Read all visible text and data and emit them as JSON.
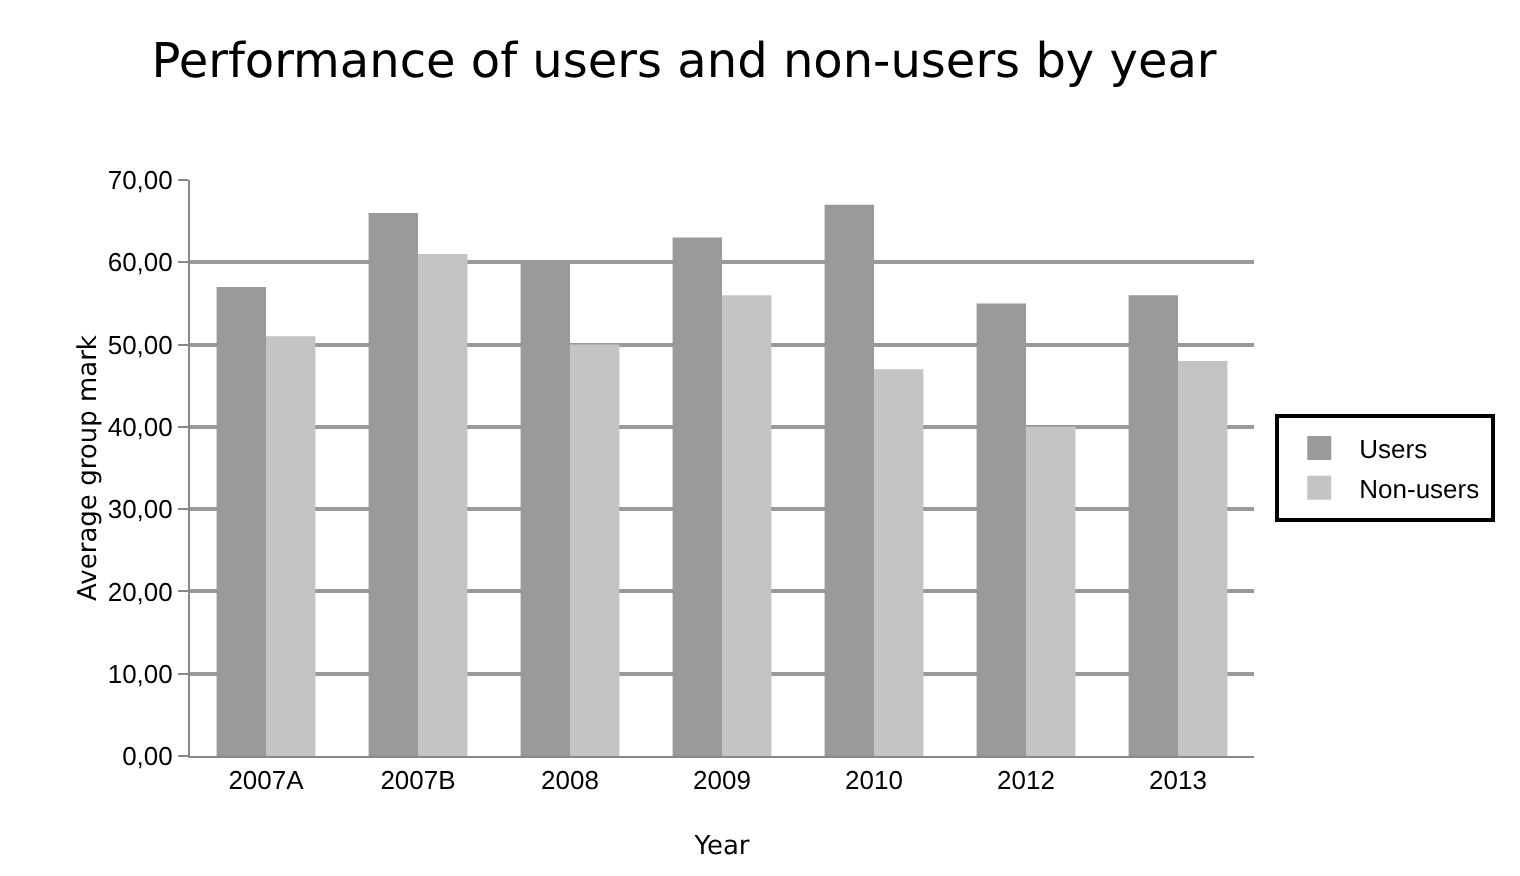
{
  "chart_data": {
    "type": "bar",
    "title": "Performance of users and non-users by year",
    "xlabel": "Year",
    "ylabel": "Average group mark",
    "categories": [
      "2007A",
      "2007B",
      "2008",
      "2009",
      "2010",
      "2012",
      "2013"
    ],
    "series": [
      {
        "name": "Users",
        "color": "#9a9a9a",
        "values": [
          57,
          66,
          60,
          63,
          67,
          55,
          56
        ]
      },
      {
        "name": "Non-users",
        "color": "#c4c4c4",
        "values": [
          51,
          61,
          50,
          56,
          47,
          40,
          48
        ]
      }
    ],
    "ylim": [
      0,
      70
    ],
    "yticks": [
      {
        "value": 0,
        "label": "0,00"
      },
      {
        "value": 10,
        "label": "10,00"
      },
      {
        "value": 20,
        "label": "20,00"
      },
      {
        "value": 30,
        "label": "30,00"
      },
      {
        "value": 40,
        "label": "40,00"
      },
      {
        "value": 50,
        "label": "50,00"
      },
      {
        "value": 60,
        "label": "60,00"
      },
      {
        "value": 70,
        "label": "70,00"
      }
    ],
    "grid": "y",
    "legend": "right"
  }
}
